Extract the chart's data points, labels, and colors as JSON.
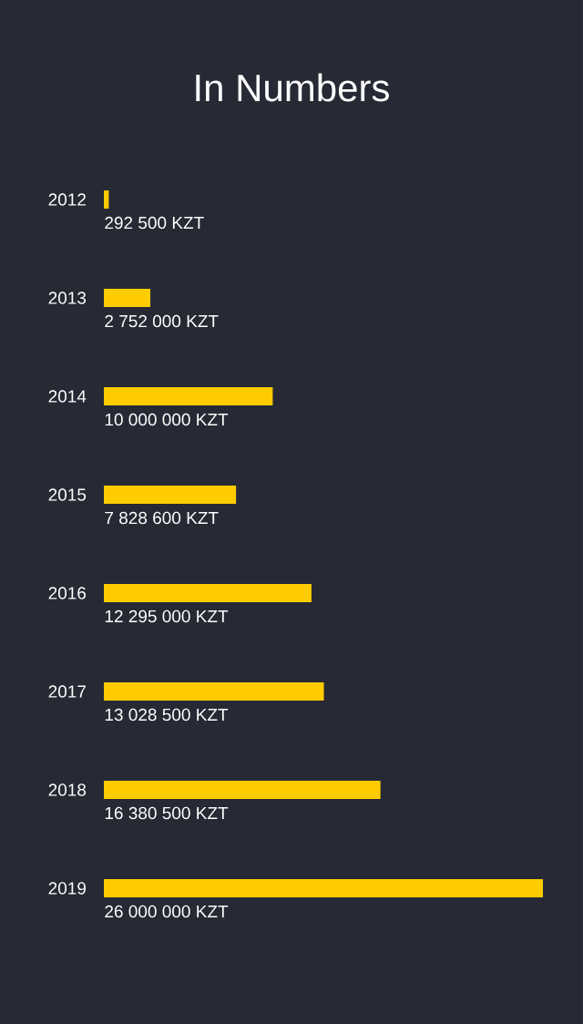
{
  "chart_data": {
    "type": "bar",
    "title": "In Numbers",
    "orientation": "horizontal",
    "categories": [
      "2012",
      "2013",
      "2014",
      "2015",
      "2016",
      "2017",
      "2018",
      "2019"
    ],
    "values": [
      292500,
      2752000,
      10000000,
      7828600,
      12295000,
      13028500,
      16380500,
      26000000
    ],
    "value_labels": [
      "292 500 KZT",
      "2 752 000 KZT",
      "10 000 000  KZT",
      "7 828 600  KZT",
      "12 295 000  KZT",
      "13 028 500  KZT",
      "16 380 500  KZT",
      "26 000 000  KZT"
    ],
    "color": "#ffcc00"
  }
}
